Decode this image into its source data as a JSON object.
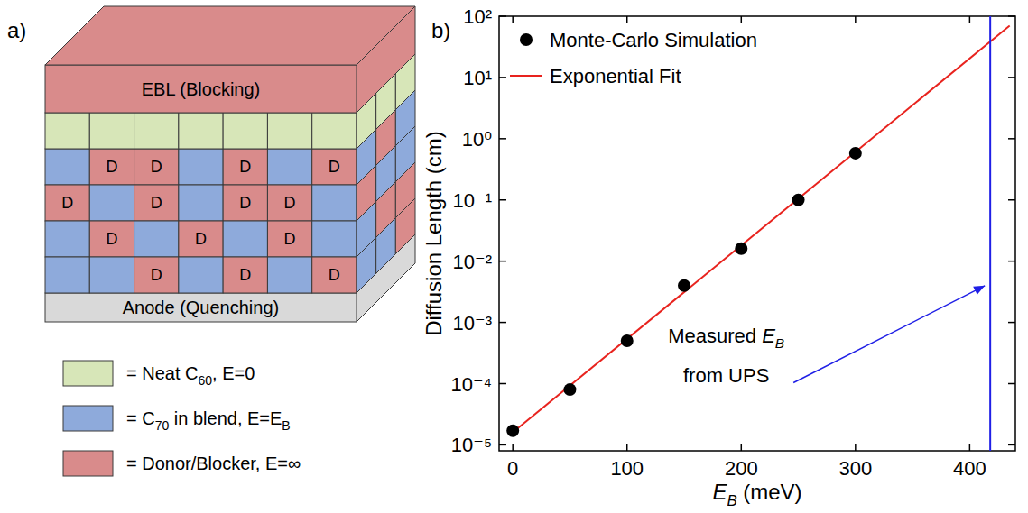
{
  "diagram": {
    "label": "a)",
    "top_layer": "EBL (Blocking)",
    "bottom_layer": "Anode (Quenching)",
    "grid_rows": [
      [
        null,
        "D",
        "D",
        null,
        "D",
        null,
        "D"
      ],
      [
        "D",
        null,
        "D",
        null,
        "D",
        "D",
        null
      ],
      [
        null,
        "D",
        null,
        "D",
        null,
        "D",
        null
      ],
      [
        null,
        null,
        "D",
        null,
        "D",
        null,
        "D"
      ]
    ],
    "legend": [
      {
        "color": "#d7e6b8",
        "segments": [
          {
            "text": "= Neat C"
          },
          {
            "text": "60",
            "sub": true
          },
          {
            "text": ", E=0"
          }
        ]
      },
      {
        "color": "#8eaadb",
        "segments": [
          {
            "text": "= C"
          },
          {
            "text": "70",
            "sub": true
          },
          {
            "text": " in blend, E=E"
          },
          {
            "text": "B",
            "sub": true
          }
        ]
      },
      {
        "color": "#d98b8b",
        "segments": [
          {
            "text": "= Donor/Blocker, E=∞"
          }
        ]
      }
    ]
  },
  "chart_label": "b)",
  "chart_data": {
    "type": "scatter",
    "xlabel": [
      {
        "text": "E",
        "italic": true
      },
      {
        "text": "B",
        "italic": true,
        "sub": true
      },
      {
        "text": " (meV)"
      }
    ],
    "ylabel": "Diffusion Length (cm)",
    "log": "y",
    "grid": false,
    "legend": "upper left",
    "xlim": [
      -12,
      440
    ],
    "xticks": [
      0,
      100,
      200,
      300,
      400
    ],
    "ylim": [
      8e-06,
      100
    ],
    "yticks": [
      {
        "value": 1e-05,
        "label": "10⁻⁵"
      },
      {
        "value": 0.0001,
        "label": "10⁻⁴"
      },
      {
        "value": 0.001,
        "label": "10⁻³"
      },
      {
        "value": 0.01,
        "label": "10⁻²"
      },
      {
        "value": 0.1,
        "label": "10⁻¹"
      },
      {
        "value": 1,
        "label": "10⁰"
      },
      {
        "value": 10,
        "label": "10¹"
      },
      {
        "value": 100,
        "label": "10²"
      }
    ],
    "series": [
      {
        "name": "Monte-Carlo Simulation",
        "type": "scatter",
        "color": "#000000",
        "marker": "circle",
        "x": [
          0,
          50,
          100,
          150,
          200,
          250,
          300
        ],
        "values": [
          1.7e-05,
          8e-05,
          0.0005,
          0.004,
          0.016,
          0.1,
          0.58
        ]
      },
      {
        "name": "Exponential Fit",
        "type": "line",
        "color": "#e8231e",
        "line_style": "solid",
        "x": [
          0,
          435
        ],
        "values": [
          1.6e-05,
          70
        ]
      }
    ],
    "annotations": [
      {
        "x": 418,
        "color": "#1f1fe6",
        "lines": [
          [
            {
              "text": "Measured "
            },
            {
              "text": "E",
              "italic": true
            },
            {
              "text": "B",
              "italic": true,
              "sub": true
            }
          ],
          [
            {
              "text": "from UPS"
            }
          ]
        ]
      }
    ]
  }
}
